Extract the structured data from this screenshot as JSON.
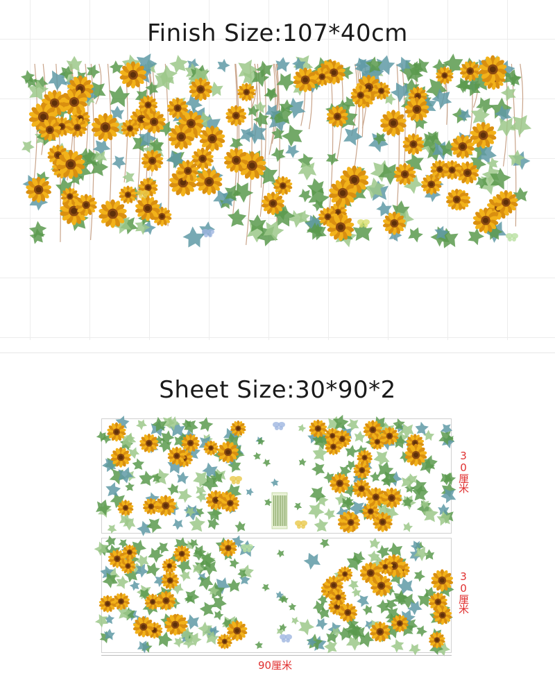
{
  "finish": {
    "title": "Finish Size:107*40cm"
  },
  "sheet": {
    "title": "Sheet Size:30*90*2"
  },
  "dimensions": {
    "sheet_1_height": "30厘米",
    "sheet_2_height": "30厘米",
    "width": "90厘米"
  },
  "colors": {
    "petal": "#f2b21a",
    "petal_dark": "#d98f10",
    "center": "#8a4a12",
    "leaf": "#5a9a4e",
    "leaf_light": "#9cc88a",
    "leaf_blue": "#5f9aa6",
    "label_red": "#e03030"
  }
}
